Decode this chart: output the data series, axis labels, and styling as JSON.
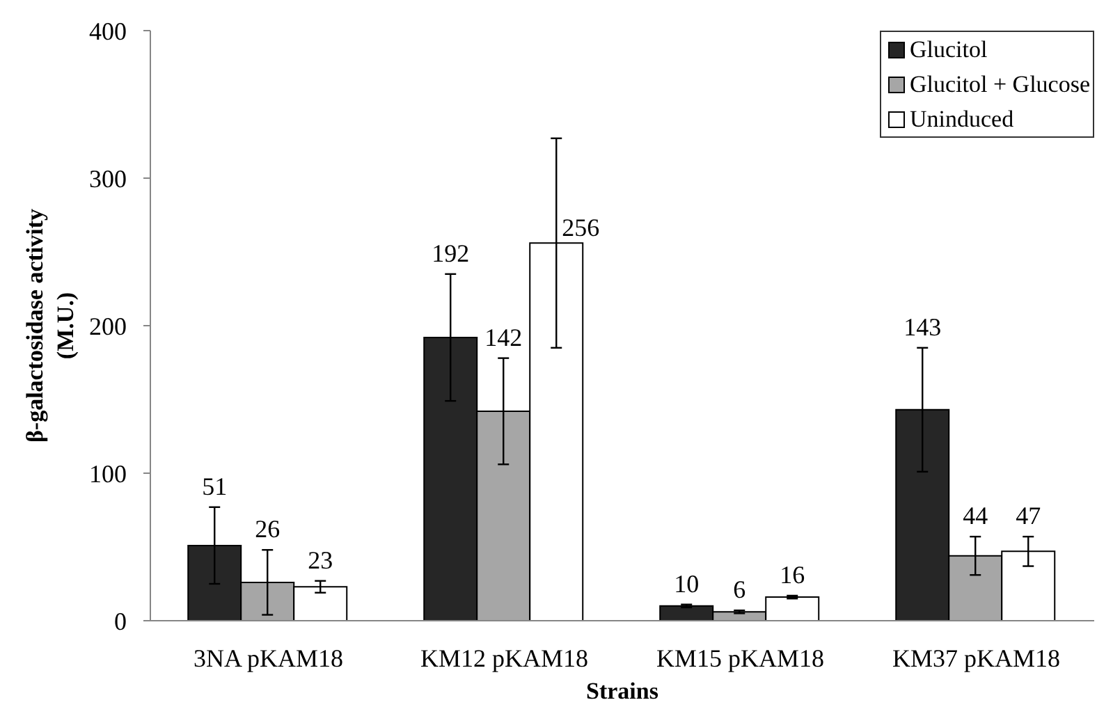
{
  "chart_data": {
    "type": "bar",
    "xlabel": "Strains",
    "ylabel": "β-galactosidase activity\n(M.U.)",
    "categories": [
      "3NA pKAM18",
      "KM12 pKAM18",
      "KM15 pKAM18",
      "KM37 pKAM18"
    ],
    "series": [
      {
        "name": "Glucitol",
        "color": "#262626",
        "values": [
          51,
          192,
          10,
          143
        ],
        "errors": [
          26,
          43,
          1,
          42
        ]
      },
      {
        "name": "Glucitol + Glucose",
        "color": "#a6a6a6",
        "values": [
          26,
          142,
          6,
          44
        ],
        "errors": [
          22,
          36,
          1,
          13
        ]
      },
      {
        "name": "Uninduced",
        "color": "#ffffff",
        "values": [
          23,
          256,
          16,
          47
        ],
        "errors": [
          4,
          71,
          1,
          10
        ]
      }
    ],
    "ylim": [
      0,
      400
    ],
    "yticks": [
      0,
      100,
      200,
      300,
      400
    ],
    "legend": "top right",
    "data_labels": true
  }
}
